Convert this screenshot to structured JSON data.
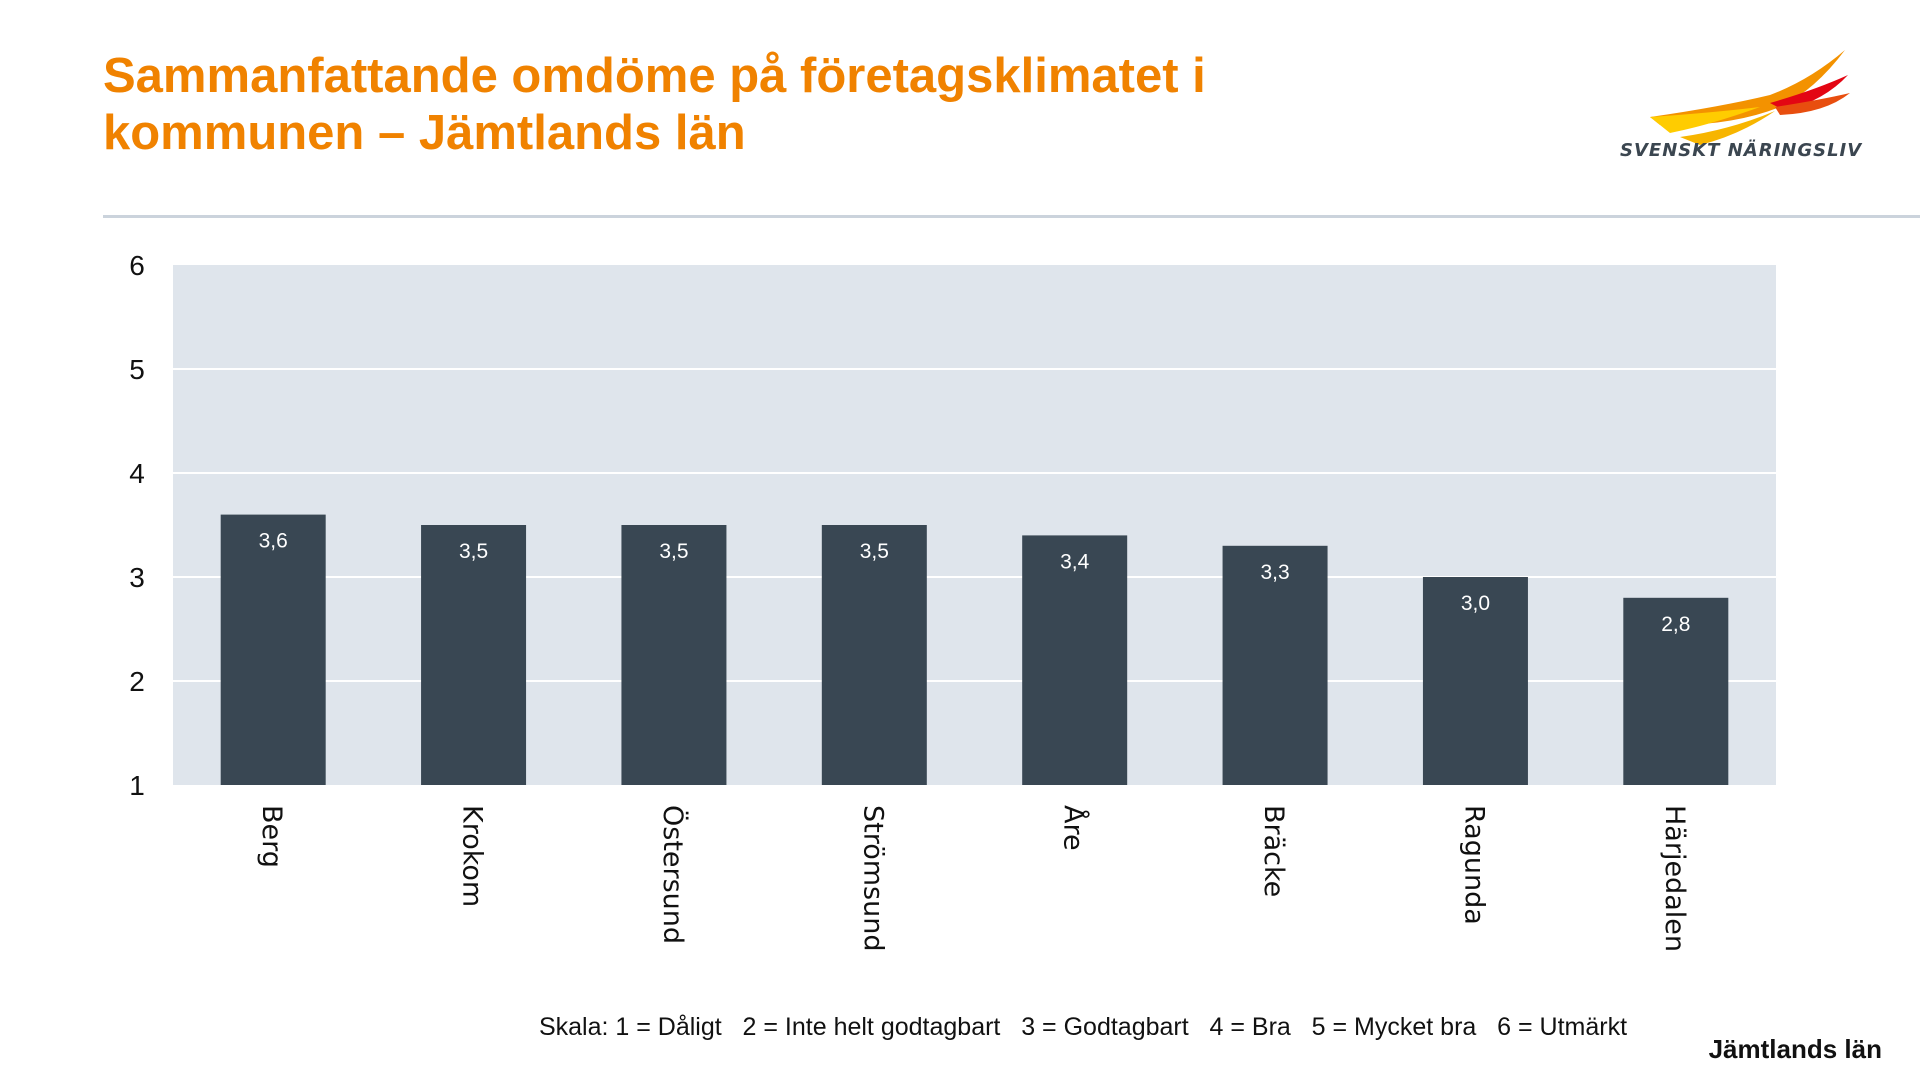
{
  "title": "Sammanfattande omdöme på företagsklimatet i kommunen – Jämtlands län",
  "logo": {
    "text": "SVENSKT NÄRINGSLIV",
    "colors": [
      "#ffcc00",
      "#f39200",
      "#e30613"
    ]
  },
  "scale_note": "Skala: 1 = Dåligt   2 = Inte helt godtagbart   3 = Godtagbart   4 = Bra   5 = Mycket bra   6 = Utmärkt",
  "region_label": "Jämtlands län",
  "colors": {
    "title": "#f08200",
    "bar": "#394753",
    "plot_background": "#dfe5ec",
    "gridline": "#ffffff"
  },
  "chart_data": {
    "type": "bar",
    "categories": [
      "Berg",
      "Krokom",
      "Östersund",
      "Strömsund",
      "Åre",
      "Bräcke",
      "Ragunda",
      "Härjedalen"
    ],
    "values": [
      3.6,
      3.5,
      3.5,
      3.5,
      3.4,
      3.3,
      3.0,
      2.8
    ],
    "data_labels": [
      "3,6",
      "3,5",
      "3,5",
      "3,5",
      "3,4",
      "3,3",
      "3,0",
      "2,8"
    ],
    "ylim": [
      1,
      6
    ],
    "yticks": [
      "1",
      "2",
      "3",
      "4",
      "5",
      "6"
    ],
    "grid": true,
    "xlabel": "",
    "ylabel": ""
  }
}
